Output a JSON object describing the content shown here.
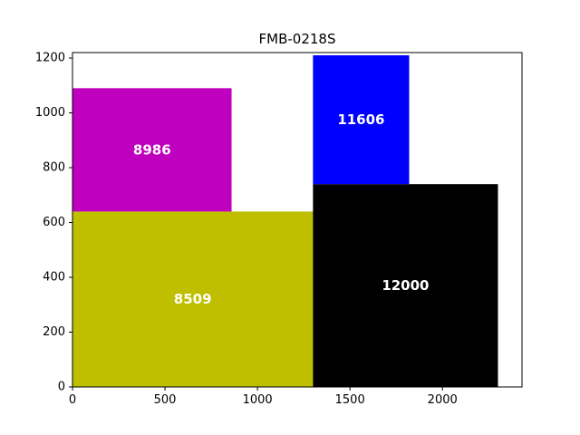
{
  "chart_data": {
    "type": "treemap",
    "title": "FMB-0218S",
    "xlim": [
      0,
      2430
    ],
    "ylim": [
      0,
      1220
    ],
    "xticks": [
      0,
      500,
      1000,
      1500,
      2000
    ],
    "yticks": [
      0,
      200,
      400,
      600,
      800,
      1000,
      1200
    ],
    "rects": [
      {
        "label": "8509",
        "x": 0,
        "y": 0,
        "w": 1300,
        "h": 640,
        "color": "#bfbf00"
      },
      {
        "label": "8986",
        "x": 0,
        "y": 640,
        "w": 860,
        "h": 450,
        "color": "#bf00bf"
      },
      {
        "label": "12000",
        "x": 1300,
        "y": 0,
        "w": 1000,
        "h": 740,
        "color": "#000000"
      },
      {
        "label": "11606",
        "x": 1300,
        "y": 740,
        "w": 520,
        "h": 470,
        "color": "#0000ff"
      }
    ]
  }
}
